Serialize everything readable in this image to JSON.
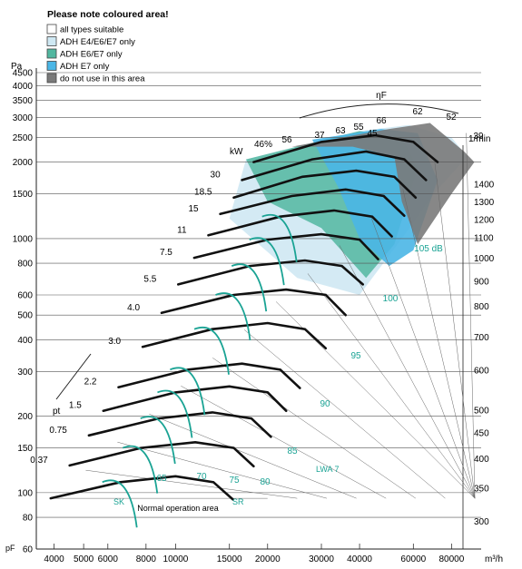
{
  "chart_data": {
    "type": "line",
    "title": "",
    "legend": {
      "title": "Please note coloured area!",
      "placement": "top-left",
      "items": [
        {
          "label": "all types suitable",
          "color": "#ffffff"
        },
        {
          "label": "ADH E4/E6/E7 only",
          "color": "#cfe8f3"
        },
        {
          "label": "ADH E6/E7 only",
          "color": "#52b7a0"
        },
        {
          "label": "ADH E7 only",
          "color": "#4ab6e6"
        },
        {
          "label": "do not use in this area",
          "color": "#7a7a7a"
        }
      ]
    },
    "y_axis": {
      "unit": "Pa",
      "symbol": "pF",
      "scale": "log",
      "range": [
        60,
        4500
      ],
      "ticks": [
        4500,
        4000,
        3500,
        3000,
        2500,
        2000,
        1500,
        1000,
        800,
        600,
        500,
        400,
        300,
        200,
        150,
        100,
        80,
        60
      ]
    },
    "x_axis": {
      "unit": "m³/h",
      "scale": "log",
      "range": [
        3500,
        100000
      ],
      "ticks": [
        4000,
        5000,
        6000,
        8000,
        10000,
        15000,
        20000,
        30000,
        40000,
        60000,
        80000
      ]
    },
    "speed_axis": {
      "unit": "1/min",
      "ticks": [
        1400,
        1300,
        1200,
        1100,
        1000,
        900,
        800,
        700,
        600,
        500,
        450,
        400,
        350,
        300
      ]
    },
    "power_axis": {
      "unit": "kW",
      "ticks": [
        "30",
        "18.5",
        "15",
        "11",
        "7.5",
        "5.5",
        "4.0",
        "3.0",
        "2.2",
        "1.5",
        "0.75",
        "0.37"
      ]
    },
    "efficiency_axis": {
      "symbol": "ηF",
      "ticks": [
        "46%",
        "56",
        "37",
        "63",
        "45",
        "55",
        "66",
        "62",
        "52",
        "39"
      ]
    },
    "noise_labels": [
      "65",
      "70",
      "75",
      "80",
      "85",
      "90",
      "95",
      "100",
      "105 dB"
    ],
    "noise_axis_label": "LWA 7",
    "annotations": {
      "pressure_symbol": "pt",
      "normal_area": "Normal operation area",
      "sk": "SK",
      "sr": "SR"
    },
    "series_fan_curves": [
      {
        "rpm": 1400,
        "points": [
          [
            18000,
            2000
          ],
          [
            30000,
            2400
          ],
          [
            45000,
            2550
          ],
          [
            60000,
            2400
          ],
          [
            72000,
            2000
          ]
        ]
      },
      {
        "rpm": 1300,
        "points": [
          [
            16500,
            1700
          ],
          [
            28000,
            2050
          ],
          [
            42000,
            2200
          ],
          [
            56000,
            2050
          ],
          [
            66000,
            1700
          ]
        ]
      },
      {
        "rpm": 1200,
        "points": [
          [
            15500,
            1450
          ],
          [
            26000,
            1750
          ],
          [
            39000,
            1850
          ],
          [
            52000,
            1750
          ],
          [
            61000,
            1450
          ]
        ]
      },
      {
        "rpm": 1100,
        "points": [
          [
            14000,
            1250
          ],
          [
            24000,
            1470
          ],
          [
            36000,
            1560
          ],
          [
            48000,
            1470
          ],
          [
            56000,
            1230
          ]
        ]
      },
      {
        "rpm": 1000,
        "points": [
          [
            12800,
            1030
          ],
          [
            22000,
            1220
          ],
          [
            33000,
            1290
          ],
          [
            44000,
            1220
          ],
          [
            51000,
            1020
          ]
        ]
      },
      {
        "rpm": 900,
        "points": [
          [
            11500,
            840
          ],
          [
            20000,
            990
          ],
          [
            30000,
            1040
          ],
          [
            40000,
            990
          ],
          [
            46000,
            830
          ]
        ]
      },
      {
        "rpm": 800,
        "points": [
          [
            10200,
            660
          ],
          [
            17500,
            780
          ],
          [
            26500,
            820
          ],
          [
            35000,
            780
          ],
          [
            41000,
            660
          ]
        ]
      },
      {
        "rpm": 700,
        "points": [
          [
            9000,
            510
          ],
          [
            15500,
            600
          ],
          [
            23000,
            630
          ],
          [
            31000,
            600
          ],
          [
            36000,
            500
          ]
        ]
      },
      {
        "rpm": 600,
        "points": [
          [
            7800,
            375
          ],
          [
            13200,
            440
          ],
          [
            20000,
            465
          ],
          [
            26500,
            440
          ],
          [
            31000,
            370
          ]
        ]
      },
      {
        "rpm": 500,
        "points": [
          [
            6500,
            260
          ],
          [
            11000,
            305
          ],
          [
            16500,
            322
          ],
          [
            22000,
            305
          ],
          [
            25500,
            258
          ]
        ]
      },
      {
        "rpm": 450,
        "points": [
          [
            5800,
            210
          ],
          [
            10000,
            248
          ],
          [
            15000,
            262
          ],
          [
            20000,
            248
          ],
          [
            23000,
            210
          ]
        ]
      },
      {
        "rpm": 400,
        "points": [
          [
            5200,
            168
          ],
          [
            8800,
            196
          ],
          [
            13200,
            207
          ],
          [
            17700,
            196
          ],
          [
            20500,
            166
          ]
        ]
      },
      {
        "rpm": 350,
        "points": [
          [
            4500,
            128
          ],
          [
            7700,
            150
          ],
          [
            11600,
            158
          ],
          [
            15500,
            150
          ],
          [
            18000,
            127
          ]
        ]
      },
      {
        "rpm": 300,
        "points": [
          [
            3900,
            95
          ],
          [
            6600,
            110
          ],
          [
            10000,
            116
          ],
          [
            13300,
            110
          ],
          [
            15400,
            94
          ]
        ]
      }
    ]
  }
}
